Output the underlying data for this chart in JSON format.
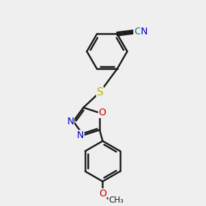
{
  "bg_color": "#efefef",
  "bond_color": "#1a1a1a",
  "bond_width": 1.8,
  "atom_colors": {
    "N": "#0000cc",
    "O": "#cc0000",
    "S": "#b8b800",
    "C_cyan": "#008080",
    "C": "#1a1a1a"
  },
  "font_size": 10,
  "font_size_small": 8.5
}
